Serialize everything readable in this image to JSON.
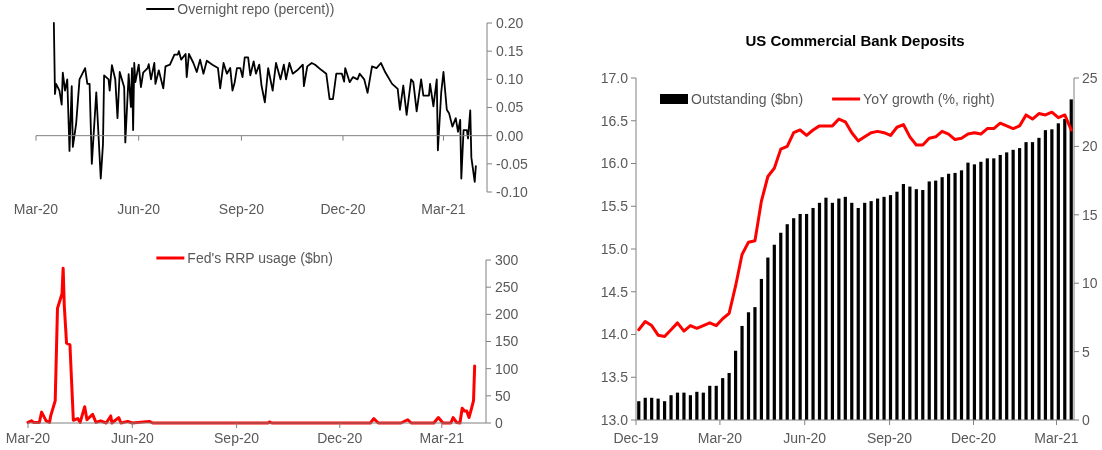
{
  "chart_data": [
    {
      "type": "line",
      "xlim": [
        "2020-03-01",
        "2021-04-09"
      ],
      "ylim": [
        -0.1,
        0.2
      ],
      "yticks": [
        {
          "value": -0.1,
          "label": "-0.10"
        },
        {
          "value": -0.05,
          "label": "-0.05"
        },
        {
          "value": 0,
          "label": "0.00"
        },
        {
          "value": 0.05,
          "label": "0.05"
        },
        {
          "value": 0.1,
          "label": "0.10"
        },
        {
          "value": 0.15,
          "label": "0.15"
        },
        {
          "value": 0.2,
          "label": "0.20"
        }
      ],
      "xticks": [
        {
          "value": "2020-03-01",
          "label": "Mar-20"
        },
        {
          "value": "2020-06-01",
          "label": "Jun-20"
        },
        {
          "value": "2020-09-01",
          "label": "Sep-20"
        },
        {
          "value": "2020-12-01",
          "label": "Dec-20"
        },
        {
          "value": "2021-03-01",
          "label": "Mar-21"
        }
      ],
      "legend": "top",
      "series": [
        {
          "name": "Overnight repo (percent))",
          "color": "#000000",
          "x": [
            "2020-03-17",
            "2020-03-18",
            "2020-03-19",
            "2020-03-22",
            "2020-03-24",
            "2020-03-25",
            "2020-03-27",
            "2020-03-29",
            "2020-03-31",
            "2020-04-02",
            "2020-04-03",
            "2020-04-06",
            "2020-04-09",
            "2020-04-14",
            "2020-04-16",
            "2020-04-18",
            "2020-04-20",
            "2020-04-24",
            "2020-04-28",
            "2020-04-30",
            "2020-05-01",
            "2020-05-05",
            "2020-05-06",
            "2020-05-08",
            "2020-05-11",
            "2020-05-13",
            "2020-05-15",
            "2020-05-19",
            "2020-05-20",
            "2020-05-23",
            "2020-05-25",
            "2020-05-26",
            "2020-05-27",
            "2020-05-28",
            "2020-05-29",
            "2020-06-01",
            "2020-06-03",
            "2020-06-05",
            "2020-06-09",
            "2020-06-10",
            "2020-06-12",
            "2020-06-15",
            "2020-06-16",
            "2020-06-19",
            "2020-06-23",
            "2020-06-25",
            "2020-06-29",
            "2020-07-03",
            "2020-07-06",
            "2020-07-07",
            "2020-07-09",
            "2020-07-13",
            "2020-07-14",
            "2020-07-16",
            "2020-07-20",
            "2020-07-23",
            "2020-07-26",
            "2020-07-29",
            "2020-08-01",
            "2020-08-06",
            "2020-08-11",
            "2020-08-13",
            "2020-08-16",
            "2020-08-19",
            "2020-08-22",
            "2020-08-24",
            "2020-08-26",
            "2020-08-28",
            "2020-08-31",
            "2020-09-02",
            "2020-09-04",
            "2020-09-07",
            "2020-09-09",
            "2020-09-12",
            "2020-09-14",
            "2020-09-17",
            "2020-09-19",
            "2020-09-22",
            "2020-09-25",
            "2020-09-29",
            "2020-10-02",
            "2020-10-06",
            "2020-10-09",
            "2020-10-11",
            "2020-10-14",
            "2020-10-17",
            "2020-10-21",
            "2020-10-26",
            "2020-10-27",
            "2020-10-30",
            "2020-11-03",
            "2020-11-06",
            "2020-11-12",
            "2020-11-16",
            "2020-11-19",
            "2020-11-22",
            "2020-11-25",
            "2020-11-30",
            "2020-12-02",
            "2020-12-03",
            "2020-12-07",
            "2020-12-10",
            "2020-12-14",
            "2020-12-16",
            "2020-12-20",
            "2020-12-23",
            "2020-12-27",
            "2020-12-31",
            "2021-01-04",
            "2021-01-08",
            "2021-01-14",
            "2021-01-19",
            "2021-01-21",
            "2021-01-24",
            "2021-01-27",
            "2021-01-31",
            "2021-02-02",
            "2021-02-05",
            "2021-02-09",
            "2021-02-11",
            "2021-02-16",
            "2021-02-17",
            "2021-02-20",
            "2021-02-23",
            "2021-02-24",
            "2021-02-27",
            "2021-03-01",
            "2021-03-04",
            "2021-03-06",
            "2021-03-09",
            "2021-03-12",
            "2021-03-14",
            "2021-03-16",
            "2021-03-17",
            "2021-03-19",
            "2021-03-22",
            "2021-03-23",
            "2021-03-25",
            "2021-03-26",
            "2021-03-29",
            "2021-03-30"
          ],
          "values": [
            0.2,
            0.074,
            0.092,
            0.08,
            0.055,
            0.112,
            0.08,
            0.1,
            -0.027,
            0.088,
            -0.02,
            0.022,
            0.1,
            0.12,
            0.092,
            0.092,
            -0.05,
            0.077,
            -0.076,
            -0.015,
            0.107,
            0.1,
            0.08,
            0.125,
            0.1,
            0.031,
            0.113,
            0.086,
            -0.012,
            0.109,
            0.051,
            0.12,
            0.01,
            0.129,
            0.095,
            0.126,
            0.086,
            0.112,
            0.12,
            0.127,
            0.1,
            0.129,
            0.092,
            0.116,
            0.084,
            0.123,
            0.126,
            0.144,
            0.144,
            0.15,
            0.135,
            0.145,
            0.104,
            0.145,
            0.129,
            0.113,
            0.135,
            0.11,
            0.133,
            0.126,
            0.12,
            0.084,
            0.129,
            0.11,
            0.12,
            0.08,
            0.095,
            0.12,
            0.12,
            0.104,
            0.139,
            0.139,
            0.107,
            0.132,
            0.11,
            0.126,
            0.089,
            0.059,
            0.12,
            0.08,
            0.129,
            0.1,
            0.126,
            0.1,
            0.129,
            0.11,
            0.116,
            0.126,
            0.088,
            0.123,
            0.129,
            0.126,
            0.116,
            0.11,
            0.065,
            0.065,
            0.11,
            0.11,
            0.096,
            0.12,
            0.095,
            0.104,
            0.1,
            0.11,
            0.1,
            0.076,
            0.123,
            0.12,
            0.129,
            0.112,
            0.092,
            0.083,
            0.046,
            0.089,
            0.037,
            0.1,
            0.095,
            0.043,
            0.1,
            0.071,
            0.071,
            0.092,
            0.052,
            0.1,
            -0.026,
            0.077,
            0.113,
            0.046,
            0.04,
            0.016,
            0.031,
            0.007,
            0.028,
            -0.076,
            0.01,
            0.01,
            -0.005,
            0.045,
            -0.039,
            -0.082,
            -0.054
          ]
        }
      ]
    },
    {
      "type": "line",
      "xlim": [
        "2020-03-01",
        "2021-04-09"
      ],
      "ylim": [
        0,
        300
      ],
      "yticks": [
        0,
        50,
        100,
        150,
        200,
        250,
        300
      ],
      "xticks": [
        {
          "value": "2020-03-01",
          "label": "Mar-20"
        },
        {
          "value": "2020-06-01",
          "label": "Jun-20"
        },
        {
          "value": "2020-09-01",
          "label": "Sep-20"
        },
        {
          "value": "2020-12-01",
          "label": "Dec-20"
        },
        {
          "value": "2021-03-01",
          "label": "Mar-21"
        }
      ],
      "legend": "top",
      "series": [
        {
          "name": "Fed's RRP usage ($bn)",
          "color": "#ff0000",
          "x": [
            "2020-03-01",
            "2020-03-04",
            "2020-03-06",
            "2020-03-11",
            "2020-03-13",
            "2020-03-17",
            "2020-03-20",
            "2020-03-21",
            "2020-03-23",
            "2020-03-25",
            "2020-03-27",
            "2020-03-31",
            "2020-04-01",
            "2020-04-02",
            "2020-04-04",
            "2020-04-07",
            "2020-04-10",
            "2020-04-14",
            "2020-04-16",
            "2020-04-20",
            "2020-04-22",
            "2020-04-27",
            "2020-04-30",
            "2020-05-04",
            "2020-05-09",
            "2020-05-13",
            "2020-05-14",
            "2020-05-20",
            "2020-05-22",
            "2020-05-28",
            "2020-06-01",
            "2020-06-16",
            "2020-06-19",
            "2020-09-29",
            "2020-09-30",
            "2020-10-02",
            "2020-12-22",
            "2020-12-28",
            "2020-12-31",
            "2021-01-04",
            "2021-01-24",
            "2021-01-30",
            "2021-02-02",
            "2021-02-22",
            "2021-02-26",
            "2021-03-02",
            "2021-03-09",
            "2021-03-11",
            "2021-03-14",
            "2021-03-17",
            "2021-03-19",
            "2021-03-21",
            "2021-03-23",
            "2021-03-25",
            "2021-03-27",
            "2021-03-29",
            "2021-03-30"
          ],
          "values": [
            1,
            4,
            1,
            1,
            20,
            4,
            1,
            13,
            27,
            41,
            211,
            238,
            285,
            216,
            147,
            144,
            5,
            8,
            1,
            30,
            6,
            16,
            1,
            4,
            0,
            13,
            0,
            10,
            0,
            3,
            0,
            3,
            0,
            0,
            2,
            0,
            0,
            0,
            8,
            0,
            0,
            6,
            0,
            0,
            10,
            0,
            0,
            10,
            1,
            0,
            27,
            22,
            22,
            10,
            25,
            41,
            105
          ]
        }
      ]
    },
    {
      "type": "bar",
      "title": "US Commercial Bank Deposits",
      "xlim": [
        "2019-12-01",
        "2021-03-20"
      ],
      "xticks": [
        {
          "value": "2019-12-01",
          "label": "Dec-19"
        },
        {
          "value": "2020-03-01",
          "label": "Mar-20"
        },
        {
          "value": "2020-06-01",
          "label": "Jun-20"
        },
        {
          "value": "2020-09-01",
          "label": "Sep-20"
        },
        {
          "value": "2020-12-01",
          "label": "Dec-20"
        },
        {
          "value": "2021-03-01",
          "label": "Mar-21"
        }
      ],
      "ylim": [
        13,
        17
      ],
      "yticks": [
        {
          "value": 13,
          "label": "13.0"
        },
        {
          "value": 13.5,
          "label": "13.5"
        },
        {
          "value": 14,
          "label": "14.0"
        },
        {
          "value": 14.5,
          "label": "14.5"
        },
        {
          "value": 15,
          "label": "15.0"
        },
        {
          "value": 15.5,
          "label": "15.5"
        },
        {
          "value": 16,
          "label": "16.0"
        },
        {
          "value": 16.5,
          "label": "16.5"
        },
        {
          "value": 17,
          "label": "17.0"
        }
      ],
      "y2lim": [
        0,
        25
      ],
      "y2ticks": [
        0,
        5,
        10,
        15,
        20,
        25
      ],
      "legend": "top left",
      "x": [
        "2019-12-04",
        "2019-12-11",
        "2019-12-18",
        "2019-12-25",
        "2020-01-01",
        "2020-01-08",
        "2020-01-15",
        "2020-01-22",
        "2020-01-29",
        "2020-02-05",
        "2020-02-12",
        "2020-02-19",
        "2020-02-26",
        "2020-03-04",
        "2020-03-11",
        "2020-03-18",
        "2020-03-25",
        "2020-04-01",
        "2020-04-08",
        "2020-04-15",
        "2020-04-22",
        "2020-04-29",
        "2020-05-06",
        "2020-05-13",
        "2020-05-20",
        "2020-05-27",
        "2020-06-03",
        "2020-06-10",
        "2020-06-17",
        "2020-06-24",
        "2020-07-01",
        "2020-07-08",
        "2020-07-15",
        "2020-07-22",
        "2020-07-29",
        "2020-08-05",
        "2020-08-12",
        "2020-08-19",
        "2020-08-26",
        "2020-09-02",
        "2020-09-09",
        "2020-09-16",
        "2020-09-23",
        "2020-09-30",
        "2020-10-07",
        "2020-10-14",
        "2020-10-21",
        "2020-10-28",
        "2020-11-04",
        "2020-11-11",
        "2020-11-18",
        "2020-11-25",
        "2020-12-02",
        "2020-12-09",
        "2020-12-16",
        "2020-12-23",
        "2020-12-30",
        "2021-01-06",
        "2021-01-13",
        "2021-01-20",
        "2021-01-27",
        "2021-02-03",
        "2021-02-10",
        "2021-02-17",
        "2021-02-24",
        "2021-03-03",
        "2021-03-10",
        "2021-03-17"
      ],
      "series": [
        {
          "name": "Outstanding ($bn)",
          "color": "#000000",
          "values": [
            13.22,
            13.26,
            13.26,
            13.25,
            13.22,
            13.29,
            13.32,
            13.32,
            13.29,
            13.33,
            13.32,
            13.4,
            13.4,
            13.49,
            13.55,
            13.81,
            14.1,
            14.26,
            14.32,
            14.65,
            14.9,
            15.05,
            15.19,
            15.29,
            15.36,
            15.41,
            15.41,
            15.48,
            15.54,
            15.6,
            15.54,
            15.59,
            15.61,
            15.54,
            15.48,
            15.54,
            15.56,
            15.59,
            15.61,
            15.63,
            15.67,
            15.76,
            15.73,
            15.7,
            15.69,
            15.79,
            15.8,
            15.84,
            15.88,
            15.89,
            15.92,
            16.01,
            15.99,
            16.02,
            16.06,
            16.06,
            16.1,
            16.13,
            16.16,
            16.18,
            16.25,
            16.25,
            16.3,
            16.39,
            16.4,
            16.47,
            16.52,
            16.75
          ]
        },
        {
          "name": "YoY growth (%, right)",
          "type": "line",
          "axis": "y2",
          "color": "#ff0000",
          "values": [
            6.6,
            7.2,
            6.9,
            6.2,
            6.1,
            6.6,
            7.1,
            6.5,
            6.9,
            6.7,
            6.9,
            7.1,
            6.9,
            7.4,
            7.8,
            9.8,
            12.1,
            13.0,
            13.1,
            16.0,
            17.8,
            18.4,
            19.8,
            20.0,
            21.0,
            21.2,
            20.8,
            21.2,
            21.5,
            21.5,
            21.5,
            22.0,
            21.8,
            21.0,
            20.4,
            20.7,
            21.0,
            21.1,
            21.0,
            20.8,
            21.4,
            21.6,
            20.7,
            20.1,
            20.1,
            20.6,
            20.7,
            21.1,
            20.9,
            20.5,
            20.6,
            20.9,
            21.0,
            20.9,
            21.3,
            21.3,
            21.7,
            21.5,
            21.3,
            21.5,
            22.3,
            22.0,
            22.4,
            22.3,
            22.5,
            22.1,
            22.3,
            21.2
          ]
        }
      ]
    }
  ]
}
